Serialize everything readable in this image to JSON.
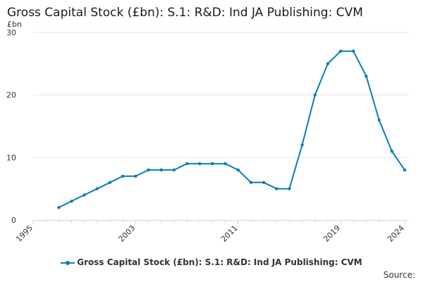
{
  "title": "Gross Capital Stock (£bn): S.1: R&D: Ind JA Publishing: CVM",
  "source_label": "Source:",
  "colors": {
    "series": "#0b7cba",
    "grid": "#e6e6e6",
    "axis": "#ccd6eb"
  },
  "chart_data": {
    "type": "line",
    "title": "Gross Capital Stock (£bn): S.1: R&D: Ind JA Publishing: CVM",
    "ylabel": "£bn",
    "xlabel": "",
    "xlim": [
      1995,
      2024
    ],
    "ylim": [
      0,
      30
    ],
    "x_ticks": [
      1995,
      2003,
      2011,
      2019,
      2024
    ],
    "y_ticks": [
      0,
      10,
      20,
      30
    ],
    "grid": "horizontal",
    "legend_position": "bottom",
    "series": [
      {
        "name": "Gross Capital Stock (£bn): S.1: R&D: Ind JA Publishing: CVM",
        "x": [
          1997,
          1998,
          1999,
          2000,
          2001,
          2002,
          2003,
          2004,
          2005,
          2006,
          2007,
          2008,
          2009,
          2010,
          2011,
          2012,
          2013,
          2014,
          2015,
          2016,
          2017,
          2018,
          2019,
          2020,
          2021,
          2022,
          2023,
          2024
        ],
        "y": [
          2,
          3,
          4,
          5,
          6,
          7,
          7,
          8,
          8,
          8,
          9,
          9,
          9,
          9,
          8,
          6,
          6,
          5,
          5,
          12,
          20,
          25,
          27,
          27,
          23,
          16,
          11,
          8
        ]
      }
    ]
  }
}
